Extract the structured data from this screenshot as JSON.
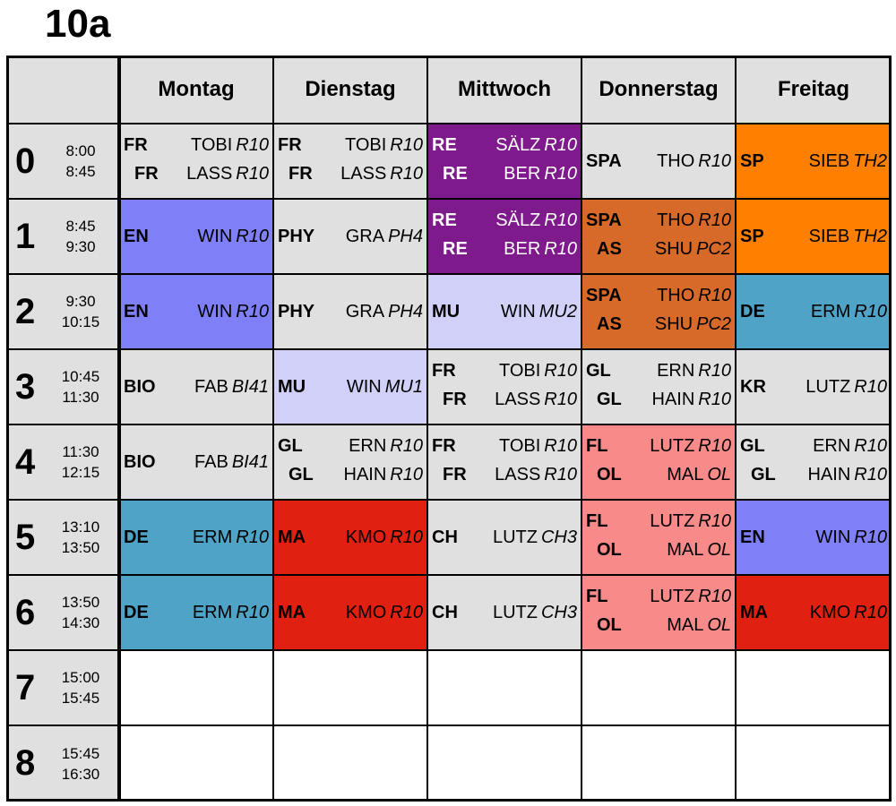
{
  "class_name": "10a",
  "days": [
    "Montag",
    "Dienstag",
    "Mittwoch",
    "Donnerstag",
    "Freitag"
  ],
  "colors": {
    "grey": "#e0e0e0",
    "blue": "#7f7ff8",
    "purple": "#7f1a8c",
    "orange": "#ff8000",
    "brown": "#d76a28",
    "lavender": "#d0d0f8",
    "teal": "#4fa3c6",
    "red": "#e02010",
    "pink": "#f88a8a",
    "white": "#ffffff"
  },
  "periods": [
    {
      "num": "0",
      "start": "8:00",
      "end": "8:45",
      "cells": [
        {
          "bg": "grey",
          "lines": [
            {
              "s": "FR",
              "t": "TOBI",
              "r": "R10"
            },
            {
              "s": "FR",
              "t": "LASS",
              "r": "R10"
            }
          ]
        },
        {
          "bg": "grey",
          "lines": [
            {
              "s": "FR",
              "t": "TOBI",
              "r": "R10"
            },
            {
              "s": "FR",
              "t": "LASS",
              "r": "R10"
            }
          ]
        },
        {
          "bg": "purple",
          "lines": [
            {
              "s": "RE",
              "t": "SÄLZ",
              "r": "R10"
            },
            {
              "s": "RE",
              "t": "BER",
              "r": "R10"
            }
          ]
        },
        {
          "bg": "grey",
          "lines": [
            {
              "s": "SPA",
              "t": "THO",
              "r": "R10"
            }
          ]
        },
        {
          "bg": "orange",
          "lines": [
            {
              "s": "SP",
              "t": "SIEB",
              "r": "TH2"
            }
          ]
        }
      ]
    },
    {
      "num": "1",
      "start": "8:45",
      "end": "9:30",
      "cells": [
        {
          "bg": "blue",
          "lines": [
            {
              "s": "EN",
              "t": "WIN",
              "r": "R10"
            }
          ]
        },
        {
          "bg": "grey",
          "lines": [
            {
              "s": "PHY",
              "t": "GRA",
              "r": "PH4"
            }
          ]
        },
        {
          "bg": "purple",
          "lines": [
            {
              "s": "RE",
              "t": "SÄLZ",
              "r": "R10"
            },
            {
              "s": "RE",
              "t": "BER",
              "r": "R10"
            }
          ]
        },
        {
          "bg": "brown",
          "lines": [
            {
              "s": "SPA",
              "t": "THO",
              "r": "R10"
            },
            {
              "s": "AS",
              "t": "SHU",
              "r": "PC2"
            }
          ]
        },
        {
          "bg": "orange",
          "lines": [
            {
              "s": "SP",
              "t": "SIEB",
              "r": "TH2"
            }
          ]
        }
      ]
    },
    {
      "num": "2",
      "start": "9:30",
      "end": "10:15",
      "cells": [
        {
          "bg": "blue",
          "lines": [
            {
              "s": "EN",
              "t": "WIN",
              "r": "R10"
            }
          ]
        },
        {
          "bg": "grey",
          "lines": [
            {
              "s": "PHY",
              "t": "GRA",
              "r": "PH4"
            }
          ]
        },
        {
          "bg": "lavender",
          "lines": [
            {
              "s": "MU",
              "t": "WIN",
              "r": "MU2"
            }
          ]
        },
        {
          "bg": "brown",
          "lines": [
            {
              "s": "SPA",
              "t": "THO",
              "r": "R10"
            },
            {
              "s": "AS",
              "t": "SHU",
              "r": "PC2"
            }
          ]
        },
        {
          "bg": "teal",
          "lines": [
            {
              "s": "DE",
              "t": "ERM",
              "r": "R10"
            }
          ]
        }
      ]
    },
    {
      "num": "3",
      "start": "10:45",
      "end": "11:30",
      "cells": [
        {
          "bg": "grey",
          "lines": [
            {
              "s": "BIO",
              "t": "FAB",
              "r": "BI41"
            }
          ]
        },
        {
          "bg": "lavender",
          "lines": [
            {
              "s": "MU",
              "t": "WIN",
              "r": "MU1"
            }
          ]
        },
        {
          "bg": "grey",
          "lines": [
            {
              "s": "FR",
              "t": "TOBI",
              "r": "R10"
            },
            {
              "s": "FR",
              "t": "LASS",
              "r": "R10"
            }
          ]
        },
        {
          "bg": "grey",
          "lines": [
            {
              "s": "GL",
              "t": "ERN",
              "r": "R10"
            },
            {
              "s": "GL",
              "t": "HAIN",
              "r": "R10"
            }
          ]
        },
        {
          "bg": "grey",
          "lines": [
            {
              "s": "KR",
              "t": "LUTZ",
              "r": "R10"
            }
          ]
        }
      ]
    },
    {
      "num": "4",
      "start": "11:30",
      "end": "12:15",
      "cells": [
        {
          "bg": "grey",
          "lines": [
            {
              "s": "BIO",
              "t": "FAB",
              "r": "BI41"
            }
          ]
        },
        {
          "bg": "grey",
          "lines": [
            {
              "s": "GL",
              "t": "ERN",
              "r": "R10"
            },
            {
              "s": "GL",
              "t": "HAIN",
              "r": "R10"
            }
          ]
        },
        {
          "bg": "grey",
          "lines": [
            {
              "s": "FR",
              "t": "TOBI",
              "r": "R10"
            },
            {
              "s": "FR",
              "t": "LASS",
              "r": "R10"
            }
          ]
        },
        {
          "bg": "pink",
          "lines": [
            {
              "s": "FL",
              "t": "LUTZ",
              "r": "R10"
            },
            {
              "s": "OL",
              "t": "MAL",
              "r": "OL"
            }
          ]
        },
        {
          "bg": "grey",
          "lines": [
            {
              "s": "GL",
              "t": "ERN",
              "r": "R10"
            },
            {
              "s": "GL",
              "t": "HAIN",
              "r": "R10"
            }
          ]
        }
      ]
    },
    {
      "num": "5",
      "start": "13:10",
      "end": "13:50",
      "cells": [
        {
          "bg": "teal",
          "lines": [
            {
              "s": "DE",
              "t": "ERM",
              "r": "R10"
            }
          ]
        },
        {
          "bg": "red",
          "lines": [
            {
              "s": "MA",
              "t": "KMO",
              "r": "R10"
            }
          ]
        },
        {
          "bg": "grey",
          "lines": [
            {
              "s": "CH",
              "t": "LUTZ",
              "r": "CH3"
            }
          ]
        },
        {
          "bg": "pink",
          "lines": [
            {
              "s": "FL",
              "t": "LUTZ",
              "r": "R10"
            },
            {
              "s": "OL",
              "t": "MAL",
              "r": "OL"
            }
          ]
        },
        {
          "bg": "blue",
          "lines": [
            {
              "s": "EN",
              "t": "WIN",
              "r": "R10"
            }
          ]
        }
      ]
    },
    {
      "num": "6",
      "start": "13:50",
      "end": "14:30",
      "cells": [
        {
          "bg": "teal",
          "lines": [
            {
              "s": "DE",
              "t": "ERM",
              "r": "R10"
            }
          ]
        },
        {
          "bg": "red",
          "lines": [
            {
              "s": "MA",
              "t": "KMO",
              "r": "R10"
            }
          ]
        },
        {
          "bg": "grey",
          "lines": [
            {
              "s": "CH",
              "t": "LUTZ",
              "r": "CH3"
            }
          ]
        },
        {
          "bg": "pink",
          "lines": [
            {
              "s": "FL",
              "t": "LUTZ",
              "r": "R10"
            },
            {
              "s": "OL",
              "t": "MAL",
              "r": "OL"
            }
          ]
        },
        {
          "bg": "red",
          "lines": [
            {
              "s": "MA",
              "t": "KMO",
              "r": "R10"
            }
          ]
        }
      ]
    },
    {
      "num": "7",
      "start": "15:00",
      "end": "15:45",
      "cells": [
        {
          "bg": "white",
          "lines": []
        },
        {
          "bg": "white",
          "lines": []
        },
        {
          "bg": "white",
          "lines": []
        },
        {
          "bg": "white",
          "lines": []
        },
        {
          "bg": "white",
          "lines": []
        }
      ]
    },
    {
      "num": "8",
      "start": "15:45",
      "end": "16:30",
      "cells": [
        {
          "bg": "white",
          "lines": []
        },
        {
          "bg": "white",
          "lines": []
        },
        {
          "bg": "white",
          "lines": []
        },
        {
          "bg": "white",
          "lines": []
        },
        {
          "bg": "white",
          "lines": []
        }
      ]
    }
  ]
}
